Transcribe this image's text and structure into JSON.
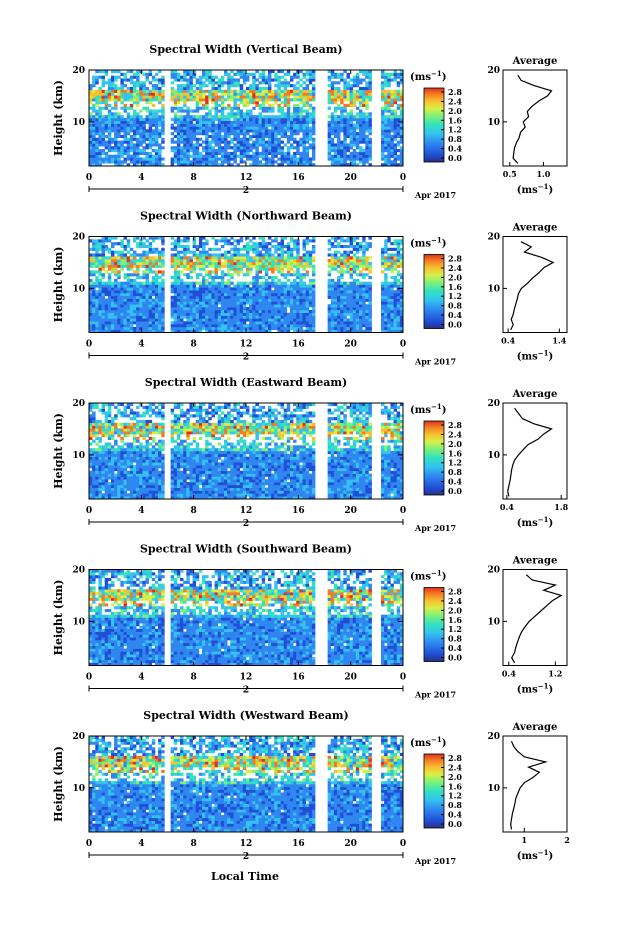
{
  "common": {
    "ylabel": "Height (km)",
    "unit_label_pre": "(ms",
    "unit_label_exp": "−1",
    "unit_label_post": ")",
    "date_label": "Apr 2017",
    "day_label": "2",
    "xlabel_bottom": "Local Time",
    "avg_title": "Average",
    "x_ticks": [
      "0",
      "4",
      "8",
      "12",
      "16",
      "20",
      "0"
    ],
    "y_ticks": [
      "20",
      "10"
    ],
    "colorbar_ticks": [
      "2.8",
      "2.4",
      "2.0",
      "1.6",
      "1.2",
      "0.8",
      "0.4",
      "0.0"
    ],
    "colormap": [
      "#2b2f80",
      "#1f4fd6",
      "#2f86f0",
      "#33c2f0",
      "#33e0c0",
      "#7df07a",
      "#d6f048",
      "#f8c030",
      "#f37a22",
      "#e0301e"
    ]
  },
  "chart_data": [
    {
      "type": "heatmap",
      "title": "Spectral Width (Vertical Beam)",
      "xlabel": "Local Time",
      "ylabel": "Height (km)",
      "x_range_hours": [
        0,
        24
      ],
      "y_range_km": [
        1.5,
        20
      ],
      "color_range_ms": [
        0.0,
        2.8
      ],
      "data_gaps_hours": [
        [
          5.7,
          5.9
        ],
        [
          17.4,
          17.8
        ],
        [
          21.6,
          21.9
        ]
      ],
      "average_profile": {
        "title": "Average",
        "xlabel": "(ms−1)",
        "x_ticks": [
          "0.5",
          "1.0"
        ],
        "x_range": [
          0.4,
          1.35
        ],
        "heights_km": [
          2,
          3,
          4,
          5,
          6,
          7,
          8,
          9,
          10,
          11,
          12,
          13,
          14,
          15,
          16,
          17,
          18,
          19
        ],
        "values": [
          0.62,
          0.55,
          0.56,
          0.57,
          0.6,
          0.64,
          0.66,
          0.73,
          0.7,
          0.78,
          0.76,
          0.83,
          0.93,
          1.06,
          1.12,
          0.86,
          0.67,
          0.62
        ]
      }
    },
    {
      "type": "heatmap",
      "title": "Spectral Width (Northward Beam)",
      "xlabel": "Local Time",
      "ylabel": "Height (km)",
      "x_range_hours": [
        0,
        24
      ],
      "y_range_km": [
        1.5,
        20
      ],
      "color_range_ms": [
        0.0,
        2.8
      ],
      "data_gaps_hours": [
        [
          5.7,
          5.9
        ],
        [
          17.4,
          17.8
        ],
        [
          21.6,
          21.9
        ]
      ],
      "average_profile": {
        "title": "Average",
        "xlabel": "(ms−1)",
        "x_ticks": [
          "0.4",
          "1.4"
        ],
        "x_range": [
          0.3,
          1.55
        ],
        "heights_km": [
          2,
          3,
          4,
          5,
          6,
          7,
          8,
          9,
          10,
          11,
          12,
          13,
          14,
          15,
          16,
          17,
          18,
          19
        ],
        "values": [
          0.45,
          0.5,
          0.46,
          0.5,
          0.52,
          0.55,
          0.58,
          0.6,
          0.66,
          0.78,
          0.88,
          1.0,
          1.1,
          1.28,
          1.05,
          0.72,
          0.85,
          0.65
        ]
      }
    },
    {
      "type": "heatmap",
      "title": "Spectral Width (Eastward Beam)",
      "xlabel": "Local Time",
      "ylabel": "Height (km)",
      "x_range_hours": [
        0,
        24
      ],
      "y_range_km": [
        1.5,
        20
      ],
      "color_range_ms": [
        0.0,
        2.8
      ],
      "data_gaps_hours": [
        [
          5.7,
          5.9
        ],
        [
          17.4,
          17.8
        ],
        [
          21.6,
          21.9
        ]
      ],
      "average_profile": {
        "title": "Average",
        "xlabel": "(ms−1)",
        "x_ticks": [
          "0.4",
          "1.8"
        ],
        "x_range": [
          0.3,
          1.95
        ],
        "heights_km": [
          2,
          3,
          4,
          5,
          6,
          7,
          8,
          9,
          10,
          11,
          12,
          13,
          14,
          15,
          16,
          17,
          18,
          19
        ],
        "values": [
          0.45,
          0.42,
          0.45,
          0.48,
          0.5,
          0.52,
          0.55,
          0.6,
          0.7,
          0.82,
          0.95,
          1.2,
          1.35,
          1.55,
          1.1,
          0.8,
          0.7,
          0.6
        ]
      }
    },
    {
      "type": "heatmap",
      "title": "Spectral Width (Southward Beam)",
      "xlabel": "Local Time",
      "ylabel": "Height (km)",
      "x_range_hours": [
        0,
        24
      ],
      "y_range_km": [
        1.5,
        20
      ],
      "color_range_ms": [
        0.0,
        2.8
      ],
      "data_gaps_hours": [
        [
          5.7,
          5.9
        ],
        [
          17.4,
          17.8
        ],
        [
          21.6,
          21.9
        ]
      ],
      "average_profile": {
        "title": "Average",
        "xlabel": "(ms−1)",
        "x_ticks": [
          "0.4",
          "1.2"
        ],
        "x_range": [
          0.3,
          1.4
        ],
        "heights_km": [
          2,
          3,
          4,
          5,
          6,
          7,
          8,
          9,
          10,
          11,
          12,
          13,
          14,
          15,
          16,
          17,
          18,
          19
        ],
        "values": [
          0.5,
          0.45,
          0.5,
          0.52,
          0.55,
          0.58,
          0.62,
          0.68,
          0.75,
          0.85,
          0.95,
          1.05,
          1.15,
          1.3,
          1.0,
          1.2,
          0.8,
          0.7
        ]
      }
    },
    {
      "type": "heatmap",
      "title": "Spectral Width (Westward Beam)",
      "xlabel": "Local Time",
      "ylabel": "Height (km)",
      "x_range_hours": [
        0,
        24
      ],
      "y_range_km": [
        1.5,
        20
      ],
      "color_range_ms": [
        0.0,
        2.8
      ],
      "data_gaps_hours": [
        [
          5.7,
          5.9
        ],
        [
          17.4,
          17.8
        ],
        [
          21.6,
          21.9
        ]
      ],
      "average_profile": {
        "title": "Average",
        "xlabel": "(ms−1)",
        "x_ticks": [
          "1",
          "2"
        ],
        "x_range": [
          0.5,
          2.0
        ],
        "heights_km": [
          2,
          3,
          4,
          5,
          6,
          7,
          8,
          9,
          10,
          11,
          12,
          13,
          14,
          15,
          16,
          17,
          18,
          19
        ],
        "values": [
          0.7,
          0.68,
          0.7,
          0.72,
          0.75,
          0.78,
          0.8,
          0.85,
          0.9,
          1.0,
          1.2,
          1.35,
          1.1,
          1.5,
          1.0,
          0.85,
          0.75,
          0.7
        ]
      }
    }
  ]
}
